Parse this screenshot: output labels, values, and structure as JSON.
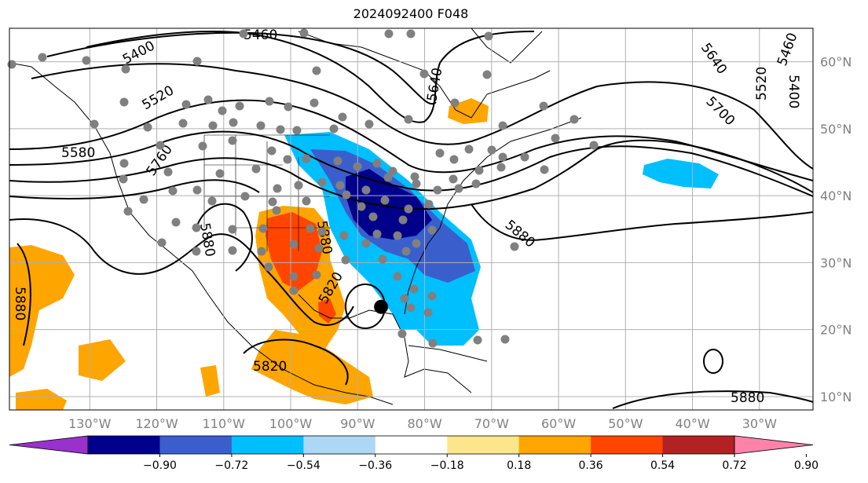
{
  "title": "2024092400 F048",
  "map": {
    "projection": "plate-carree",
    "lon_range": [
      -142,
      -22
    ],
    "lat_range": [
      8,
      65
    ],
    "lon_ticks": [
      {
        "lon": -130,
        "label": "130°W"
      },
      {
        "lon": -120,
        "label": "120°W"
      },
      {
        "lon": -110,
        "label": "110°W"
      },
      {
        "lon": -100,
        "label": "100°W"
      },
      {
        "lon": -90,
        "label": "90°W"
      },
      {
        "lon": -80,
        "label": "80°W"
      },
      {
        "lon": -70,
        "label": "70°W"
      },
      {
        "lon": -60,
        "label": "60°W"
      },
      {
        "lon": -50,
        "label": "50°W"
      },
      {
        "lon": -40,
        "label": "40°W"
      },
      {
        "lon": -30,
        "label": "30°W"
      }
    ],
    "lat_ticks": [
      {
        "lat": 60,
        "label": "60°N"
      },
      {
        "lat": 50,
        "label": "50°N"
      },
      {
        "lat": 40,
        "label": "40°N"
      },
      {
        "lat": 30,
        "label": "30°N"
      },
      {
        "lat": 20,
        "label": "20°N"
      },
      {
        "lat": 10,
        "label": "10°N"
      }
    ],
    "contour_labels": [
      "5400",
      "5460",
      "5520",
      "5580",
      "5640",
      "5700",
      "5760",
      "5820",
      "5880"
    ],
    "storm_center": {
      "lon": -86.5,
      "lat": 23.4
    }
  },
  "colorbar": {
    "colors": [
      "#9932cc",
      "#00008b",
      "#3a5fcd",
      "#00bfff",
      "#add8f5",
      "#ffffff",
      "#fce68c",
      "#ffa500",
      "#ff4500",
      "#b22222",
      "#ff82ab"
    ],
    "ticks": [
      "−0.90",
      "−0.72",
      "−0.54",
      "−0.36",
      "−0.18",
      "0.18",
      "0.36",
      "0.54",
      "0.72",
      "0.90"
    ]
  }
}
